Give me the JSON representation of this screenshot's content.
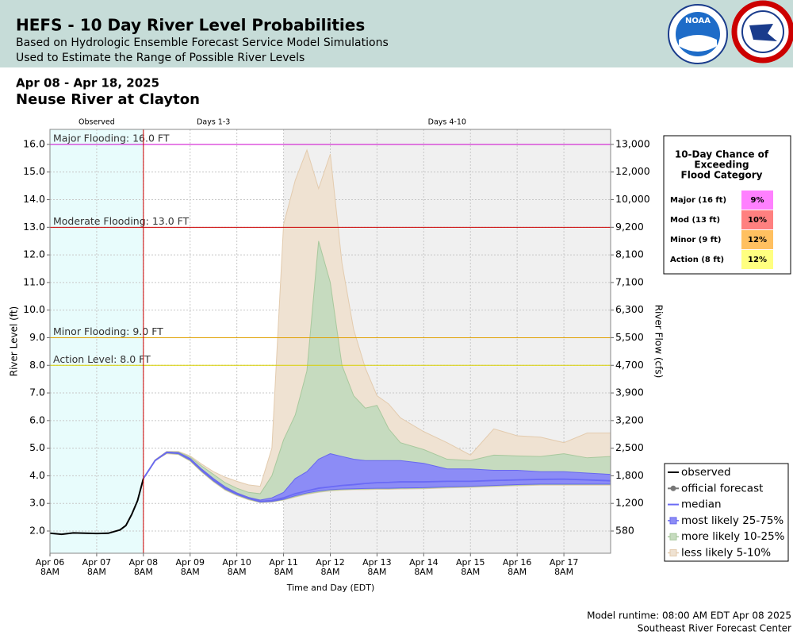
{
  "header": {
    "title": "HEFS - 10 Day River Level Probabilities",
    "subtitle_lines": [
      "Based on Hydrologic Ensemble Forecast Service Model Simulations",
      "Used to Estimate the Range of Possible River Levels"
    ],
    "logo_text": "NOAA"
  },
  "date_range": "Apr 08 - Apr 18, 2025",
  "location": "Neuse River at Clayton",
  "chart_data": {
    "type": "line",
    "y_label": "River Level (ft)",
    "y2_label": "River Flow (cfs)",
    "x_label": "Time and Day (EDT)",
    "xlim": [
      0,
      12
    ],
    "ylim": [
      1.195,
      16.545
    ],
    "grid": true,
    "xticks": [
      {
        "value": 0,
        "label": "Apr 06",
        "time": "8AM"
      },
      {
        "value": 1,
        "label": "Apr 07",
        "time": "8AM"
      },
      {
        "value": 2,
        "label": "Apr 08",
        "time": "8AM"
      },
      {
        "value": 3,
        "label": "Apr 09",
        "time": "8AM"
      },
      {
        "value": 4,
        "label": "Apr 10",
        "time": "8AM"
      },
      {
        "value": 5,
        "label": "Apr 11",
        "time": "8AM"
      },
      {
        "value": 6,
        "label": "Apr 12",
        "time": "8AM"
      },
      {
        "value": 7,
        "label": "Apr 13",
        "time": "8AM"
      },
      {
        "value": 8,
        "label": "Apr 14",
        "time": "8AM"
      },
      {
        "value": 9,
        "label": "Apr 15",
        "time": "8AM"
      },
      {
        "value": 10,
        "label": "Apr 16",
        "time": "8AM"
      },
      {
        "value": 11,
        "label": "Apr 17",
        "time": "8AM"
      }
    ],
    "yticks": [
      {
        "value": 2,
        "label": "2.0"
      },
      {
        "value": 3,
        "label": "3.0"
      },
      {
        "value": 4,
        "label": "4.0"
      },
      {
        "value": 5,
        "label": "5.0"
      },
      {
        "value": 6,
        "label": "6.0"
      },
      {
        "value": 7,
        "label": "7.0"
      },
      {
        "value": 8,
        "label": "8.0"
      },
      {
        "value": 9,
        "label": "9.0"
      },
      {
        "value": 10,
        "label": "10.0"
      },
      {
        "value": 11,
        "label": "11.0"
      },
      {
        "value": 12,
        "label": "12.0"
      },
      {
        "value": 13,
        "label": "13.0"
      },
      {
        "value": 14,
        "label": "14.0"
      },
      {
        "value": 15,
        "label": "15.0"
      },
      {
        "value": 16,
        "label": "16.0"
      }
    ],
    "y2ticks": [
      {
        "value": 580,
        "label": "580",
        "stage": 2
      },
      {
        "value": 1200,
        "label": "1,200",
        "stage": 3
      },
      {
        "value": 1800,
        "label": "1,800",
        "stage": 4
      },
      {
        "value": 2500,
        "label": "2,500",
        "stage": 5
      },
      {
        "value": 3200,
        "label": "3,200",
        "stage": 6
      },
      {
        "value": 3900,
        "label": "3,900",
        "stage": 7
      },
      {
        "value": 4700,
        "label": "4,700",
        "stage": 8
      },
      {
        "value": 5500,
        "label": "5,500",
        "stage": 9
      },
      {
        "value": 6300,
        "label": "6,300",
        "stage": 10
      },
      {
        "value": 7100,
        "label": "7,100",
        "stage": 11
      },
      {
        "value": 8100,
        "label": "8,100",
        "stage": 12
      },
      {
        "value": 9200,
        "label": "9,200",
        "stage": 13
      },
      {
        "value": 10000,
        "label": "10,000",
        "stage": 14
      },
      {
        "value": 12000,
        "label": "12,000",
        "stage": 15
      },
      {
        "value": 13000,
        "label": "13,000",
        "stage": 16
      }
    ],
    "regions": [
      {
        "label": "Observed",
        "start": 0,
        "end": 2,
        "color": "#e8fcfc"
      },
      {
        "label": "Days 1-3",
        "start": 2,
        "end": 5,
        "color": "#ffffff"
      },
      {
        "label": "Days 4-10",
        "start": 5,
        "end": 12,
        "color": "#f0f0f0"
      }
    ],
    "thresholds": [
      {
        "label": "Major Flooding: 16.0 FT",
        "value": 16,
        "color": "#cc00cc"
      },
      {
        "label": "Moderate Flooding: 13.0 FT",
        "value": 13,
        "color": "#cc0000"
      },
      {
        "label": "Minor Flooding: 9.0 FT",
        "value": 9,
        "color": "#e0a000"
      },
      {
        "label": "Action Level: 8.0 FT",
        "value": 8,
        "color": "#d8d000"
      }
    ],
    "forecast_x": [
      2,
      2.25,
      2.5,
      2.75,
      3,
      3.25,
      3.5,
      3.75,
      4,
      4.25,
      4.5,
      4.75,
      5,
      5.25,
      5.5,
      5.75,
      6,
      6.25,
      6.5,
      6.75,
      7,
      7.25,
      7.5,
      8,
      8.5,
      9,
      9.5,
      10,
      10.5,
      11,
      11.5,
      12
    ],
    "bands": [
      {
        "name": "less likely 5-10%",
        "color": "#efe2d2",
        "edge": "#e3cbae",
        "lower": [
          3.9,
          4.55,
          4.8,
          4.77,
          4.53,
          4.13,
          3.78,
          3.48,
          3.28,
          3.13,
          3.03,
          3.05,
          3.12,
          3.23,
          3.33,
          3.4,
          3.45,
          3.48,
          3.5,
          3.5,
          3.51,
          3.51,
          3.52,
          3.53,
          3.56,
          3.58,
          3.61,
          3.64,
          3.66,
          3.66,
          3.66,
          3.66
        ],
        "upper": [
          3.9,
          4.58,
          4.88,
          4.88,
          4.72,
          4.42,
          4.15,
          3.95,
          3.8,
          3.67,
          3.62,
          5.0,
          13.1,
          14.7,
          15.8,
          14.4,
          15.65,
          11.7,
          9.3,
          7.9,
          6.9,
          6.6,
          6.1,
          5.6,
          5.2,
          4.75,
          5.7,
          5.45,
          5.4,
          5.2,
          5.55,
          5.55
        ]
      },
      {
        "name": "more likely 10-25%",
        "color": "#c6dbbf",
        "edge": "#a8c89d",
        "lower": [
          3.9,
          4.55,
          4.82,
          4.78,
          4.55,
          4.15,
          3.8,
          3.5,
          3.3,
          3.15,
          3.04,
          3.06,
          3.13,
          3.25,
          3.35,
          3.42,
          3.47,
          3.5,
          3.51,
          3.52,
          3.53,
          3.53,
          3.54,
          3.55,
          3.58,
          3.6,
          3.63,
          3.66,
          3.68,
          3.68,
          3.68,
          3.68
        ],
        "upper": [
          3.9,
          4.57,
          4.87,
          4.86,
          4.68,
          4.35,
          4.05,
          3.75,
          3.55,
          3.4,
          3.35,
          4.0,
          5.3,
          6.2,
          7.8,
          12.5,
          11.0,
          8.0,
          6.9,
          6.45,
          6.55,
          5.7,
          5.2,
          4.95,
          4.6,
          4.55,
          4.75,
          4.72,
          4.7,
          4.8,
          4.65,
          4.7
        ]
      },
      {
        "name": "most likely 25-75%",
        "color": "#8c8cf6",
        "edge": "#6868ee",
        "lower": [
          3.9,
          4.55,
          4.83,
          4.8,
          4.57,
          4.17,
          3.82,
          3.52,
          3.32,
          3.17,
          3.05,
          3.07,
          3.15,
          3.28,
          3.38,
          3.45,
          3.5,
          3.52,
          3.53,
          3.54,
          3.55,
          3.55,
          3.56,
          3.57,
          3.6,
          3.62,
          3.65,
          3.68,
          3.7,
          3.7,
          3.7,
          3.7
        ],
        "upper": [
          3.9,
          4.56,
          4.86,
          4.84,
          4.63,
          4.24,
          3.9,
          3.6,
          3.38,
          3.22,
          3.12,
          3.2,
          3.4,
          3.9,
          4.15,
          4.6,
          4.8,
          4.7,
          4.6,
          4.55,
          4.55,
          4.55,
          4.55,
          4.45,
          4.25,
          4.25,
          4.2,
          4.2,
          4.15,
          4.15,
          4.1,
          4.05
        ]
      }
    ],
    "series": [
      {
        "name": "observed",
        "color": "#000000",
        "x": [
          0,
          0.25,
          0.5,
          0.75,
          1,
          1.25,
          1.5,
          1.625,
          1.75,
          1.875,
          2
        ],
        "values": [
          1.92,
          1.88,
          1.93,
          1.92,
          1.91,
          1.92,
          2.04,
          2.2,
          2.6,
          3.1,
          3.9
        ]
      },
      {
        "name": "official forecast",
        "color": "#777777",
        "marker": true,
        "x": [
          2,
          2.25,
          2.5,
          2.75,
          3,
          3.25,
          3.5,
          3.75,
          4,
          4.25,
          4.5,
          4.75,
          5
        ],
        "values": [
          3.9,
          4.55,
          4.85,
          4.82,
          4.6,
          4.2,
          3.85,
          3.55,
          3.35,
          3.2,
          3.07,
          3.1,
          3.2
        ]
      },
      {
        "name": "median",
        "color": "#6a6af5",
        "values": [
          3.9,
          4.55,
          4.85,
          4.82,
          4.6,
          4.2,
          3.85,
          3.55,
          3.35,
          3.2,
          3.07,
          3.1,
          3.2,
          3.35,
          3.45,
          3.55,
          3.6,
          3.65,
          3.68,
          3.72,
          3.75,
          3.76,
          3.78,
          3.78,
          3.8,
          3.8,
          3.83,
          3.85,
          3.87,
          3.88,
          3.85,
          3.82
        ]
      }
    ]
  },
  "exceedance": {
    "title_lines": [
      "10-Day Chance of",
      "Exceeding",
      "Flood Category"
    ],
    "rows": [
      {
        "category": "Major (16 ft)",
        "value": 9,
        "label": "9%",
        "color": "#ff80ff"
      },
      {
        "category": "Mod (13 ft)",
        "value": 10,
        "label": "10%",
        "color": "#ff8080"
      },
      {
        "category": "Minor (9 ft)",
        "value": 12,
        "label": "12%",
        "color": "#ffc060"
      },
      {
        "category": "Action (8 ft)",
        "value": 12,
        "label": "12%",
        "color": "#ffff80"
      }
    ]
  },
  "footer": [
    "Model runtime: 08:00 AM EDT Apr 08 2025",
    "Southeast River Forecast Center"
  ]
}
